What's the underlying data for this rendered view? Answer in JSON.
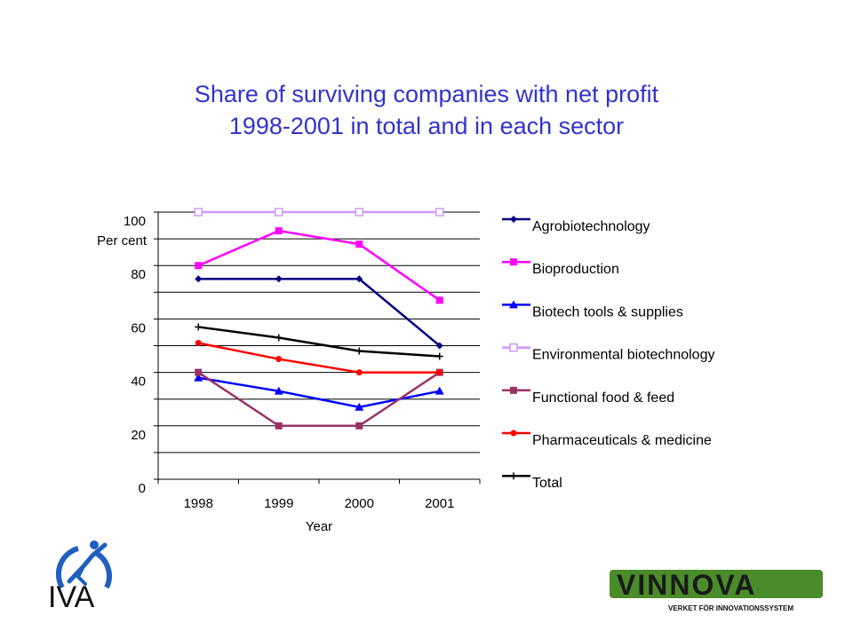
{
  "title": {
    "line1": "Share of surviving companies with net profit",
    "line2": "1998-2001 in total and in each sector"
  },
  "chart_data": {
    "type": "line",
    "x": [
      "1998",
      "1999",
      "2000",
      "2001"
    ],
    "xlabel": "Year",
    "ylabel": "Per cent",
    "ylim": [
      0,
      100
    ],
    "yticks": [
      0,
      20,
      40,
      60,
      80,
      100
    ],
    "grid": true,
    "legend_position": "right",
    "series": [
      {
        "name": "Agrobiotechnology",
        "values": [
          75,
          75,
          75,
          50
        ],
        "color": "#000080",
        "marker": "diamond"
      },
      {
        "name": "Bioproduction",
        "values": [
          80,
          93,
          88,
          67
        ],
        "color": "#ff00ff",
        "marker": "square"
      },
      {
        "name": "Biotech tools & supplies",
        "values": [
          38,
          33,
          27,
          33
        ],
        "color": "#0000ff",
        "marker": "triangle"
      },
      {
        "name": "Environmental biotechnology",
        "values": [
          100,
          100,
          100,
          100
        ],
        "color": "#cc99ff",
        "marker": "open-square"
      },
      {
        "name": "Functional food & feed",
        "values": [
          40,
          20,
          20,
          40
        ],
        "color": "#993366",
        "marker": "square"
      },
      {
        "name": "Pharmaceuticals & medicine",
        "values": [
          51,
          45,
          40,
          40
        ],
        "color": "#ff0000",
        "marker": "circle"
      },
      {
        "name": "Total",
        "values": [
          57,
          53,
          48,
          46
        ],
        "color": "#000000",
        "marker": "plus"
      }
    ]
  },
  "logos": {
    "iva_text": "IVA",
    "vinnova_text": "VINNOVA",
    "vinnova_tagline": "VERKET FÖR INNOVATIONSSYSTEM"
  }
}
